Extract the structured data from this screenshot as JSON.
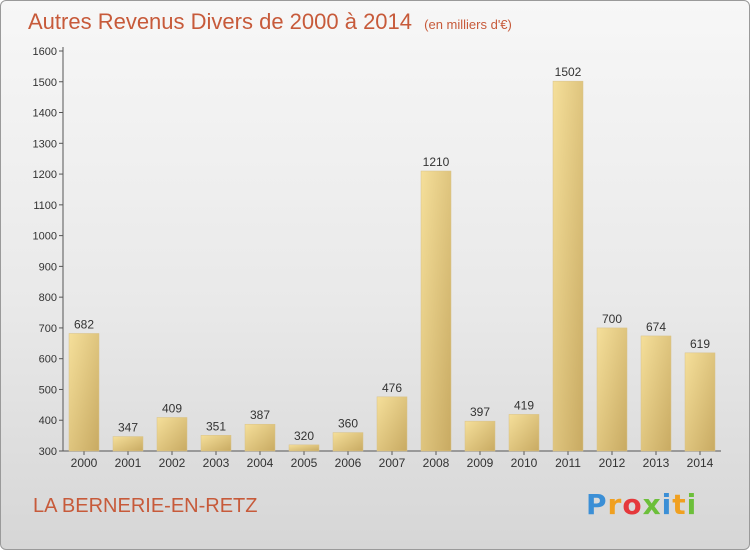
{
  "chart_data": {
    "type": "bar",
    "title": "Autres Revenus Divers de 2000 à 2014",
    "subtitle": "(en milliers d'€)",
    "categories": [
      "2000",
      "2001",
      "2002",
      "2003",
      "2004",
      "2005",
      "2006",
      "2007",
      "2008",
      "2009",
      "2010",
      "2011",
      "2012",
      "2013",
      "2014"
    ],
    "values": [
      682,
      347,
      409,
      351,
      387,
      320,
      360,
      476,
      1210,
      397,
      419,
      1502,
      700,
      674,
      619
    ],
    "ylim": [
      300,
      1600
    ],
    "yticks": [
      300,
      400,
      500,
      600,
      700,
      800,
      900,
      1000,
      1100,
      1200,
      1300,
      1400,
      1500,
      1600
    ],
    "grid": false,
    "colors": {
      "bar_light": "#f5df9a",
      "bar_dark": "#c8aa62",
      "title": "#c75a3a"
    }
  },
  "location": "LA BERNERIE-EN-RETZ",
  "logo": {
    "text": "Proxiti",
    "letters": [
      "P",
      "r",
      "o",
      "x",
      "i",
      "t",
      "i"
    ],
    "letter_colors": [
      "#3b8fd6",
      "#f0a020",
      "#e5383b",
      "#6cbf3a",
      "#3b8fd6",
      "#f0a020",
      "#6cbf3a"
    ]
  }
}
